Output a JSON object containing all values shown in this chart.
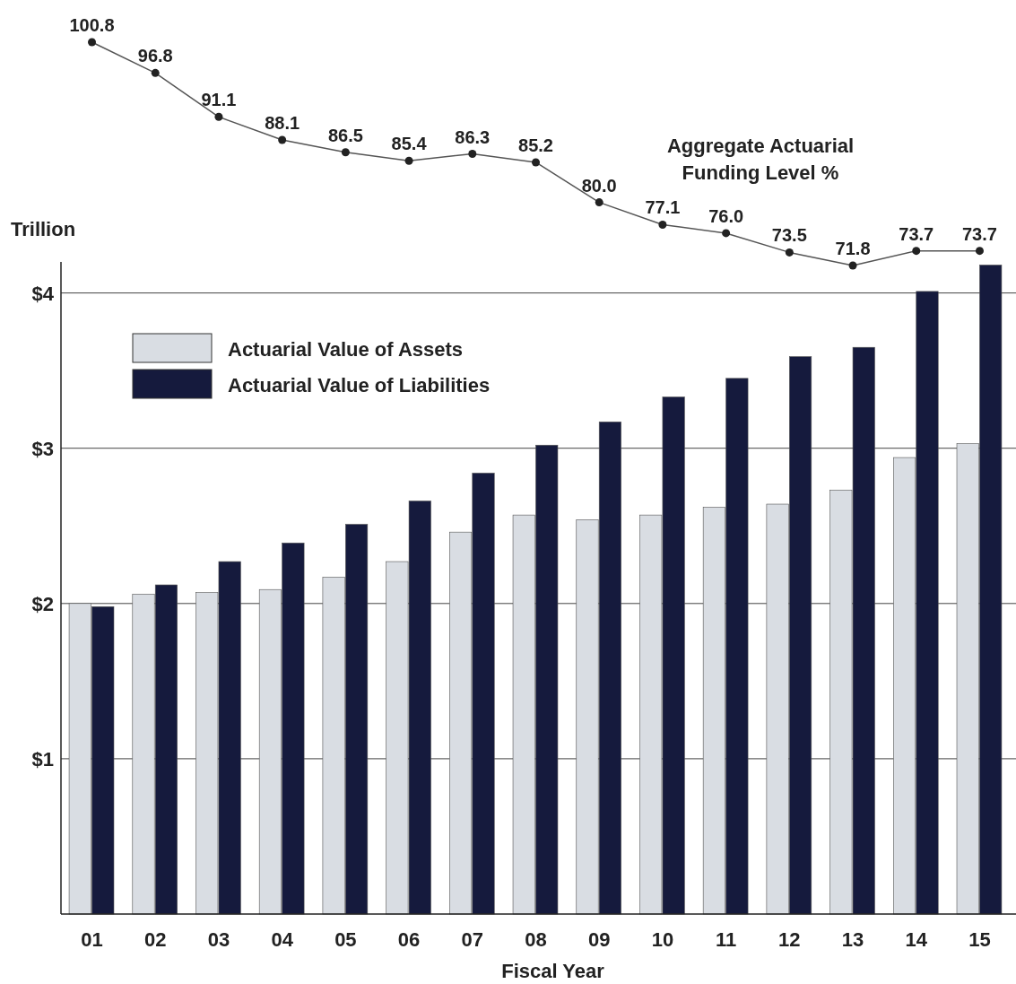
{
  "chart_data": [
    {
      "type": "line",
      "categories": [
        null,
        null,
        null,
        null,
        null,
        null,
        null,
        null,
        null,
        null,
        null,
        null,
        null,
        null,
        null
      ],
      "marker": "circle",
      "series": [
        {
          "name": "Aggregate Actuarial Funding Level %",
          "color": "#555555",
          "values": [
            100.8,
            96.8,
            91.1,
            88.1,
            86.5,
            85.4,
            86.3,
            85.2,
            80.0,
            77.1,
            76.0,
            73.5,
            71.8,
            73.7,
            73.7
          ],
          "value_labels": [
            "100.8",
            "96.8",
            "91.1",
            "88.1",
            "86.5",
            "85.4",
            "86.3",
            "85.2",
            "80.0",
            "77.1",
            "76.0",
            "73.5",
            "71.8",
            "73.7",
            "73.7"
          ]
        }
      ]
    },
    {
      "type": "bar",
      "ylabel": "Trillion",
      "xlabel": "Fiscal Year",
      "categories": [
        "01",
        "02",
        "03",
        "04",
        "05",
        "06",
        "07",
        "08",
        "09",
        "10",
        "11",
        "12",
        "13",
        "14",
        "15"
      ],
      "series": [
        {
          "name": "Actuarial Value of Assets",
          "color": "#d9dde3",
          "values": [
            2.0,
            2.06,
            2.07,
            2.09,
            2.17,
            2.27,
            2.46,
            2.57,
            2.54,
            2.57,
            2.62,
            2.64,
            2.73,
            2.94,
            3.03
          ]
        },
        {
          "name": "Actuarial Value of Liabilities",
          "color": "#151a3d",
          "values": [
            1.98,
            2.12,
            2.27,
            2.39,
            2.51,
            2.66,
            2.84,
            3.02,
            3.17,
            3.33,
            3.45,
            3.59,
            3.65,
            4.01,
            4.18
          ]
        }
      ],
      "ylim": [
        0,
        4.2
      ],
      "yticks": [
        {
          "value": 1,
          "label": "$1"
        },
        {
          "value": 2,
          "label": "$2"
        },
        {
          "value": 3,
          "label": "$3"
        },
        {
          "value": 4,
          "label": "$4"
        }
      ],
      "grid": "y",
      "legend": "top left"
    }
  ]
}
